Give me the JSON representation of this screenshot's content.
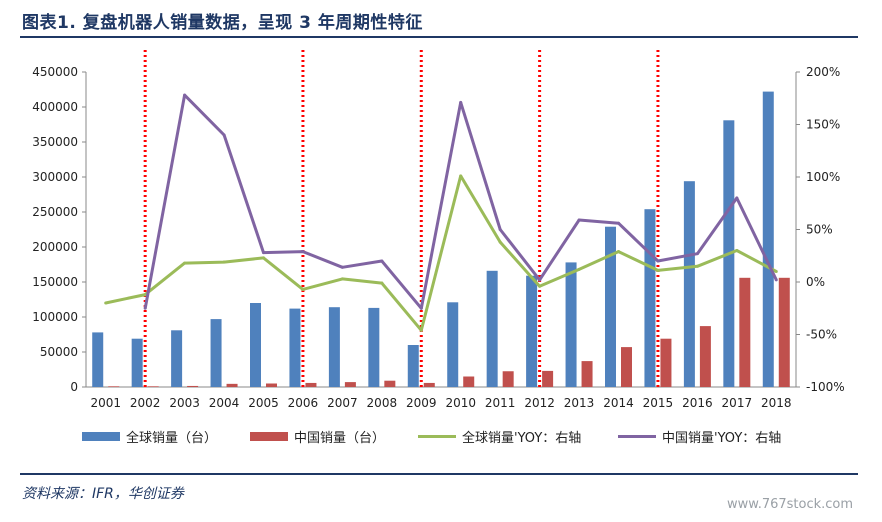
{
  "header": {
    "title": "图表1.   复盘机器人销量数据，呈现 3 年周期性特征"
  },
  "footer": {
    "source": "资料来源：IFR，华创证券",
    "watermark": "www.767stock.com"
  },
  "colors": {
    "global_bar": "#4f81bd",
    "china_bar": "#c0504d",
    "global_yoy": "#9bbb59",
    "china_yoy": "#8064a2",
    "cycle_marker": "#ff0000",
    "title": "#1f3864"
  },
  "chart_data": {
    "type": "bar",
    "categories": [
      "2001",
      "2002",
      "2003",
      "2004",
      "2005",
      "2006",
      "2007",
      "2008",
      "2009",
      "2010",
      "2011",
      "2012",
      "2013",
      "2014",
      "2015",
      "2016",
      "2017",
      "2018"
    ],
    "series": [
      {
        "name": "全球销量（台）",
        "type": "bar",
        "axis": "left",
        "values": [
          78000,
          69000,
          81000,
          97000,
          120000,
          112000,
          114000,
          113000,
          60000,
          121000,
          166000,
          159000,
          178000,
          229000,
          254000,
          294000,
          381000,
          422000
        ]
      },
      {
        "name": "中国销量（台）",
        "type": "bar",
        "axis": "left",
        "values": [
          1000,
          1000,
          1500,
          4500,
          5000,
          5800,
          7000,
          9000,
          5800,
          15000,
          22500,
          23000,
          37000,
          57000,
          69000,
          87000,
          156000,
          156000
        ]
      },
      {
        "name": "全球销量'YOY：右轴",
        "type": "line",
        "axis": "right",
        "values": [
          -20,
          -12,
          18,
          19,
          23,
          -7,
          3,
          -1,
          -46,
          101,
          38,
          -4,
          12,
          29,
          11,
          15,
          30,
          10
        ]
      },
      {
        "name": "中国销量'YOY：右轴",
        "type": "line",
        "axis": "right",
        "values": [
          null,
          -25,
          178,
          140,
          28,
          29,
          14,
          20,
          -25,
          171,
          50,
          2,
          59,
          56,
          20,
          27,
          80,
          2
        ]
      }
    ],
    "cycle_markers": [
      "2002",
      "2006",
      "2009",
      "2012",
      "2015"
    ],
    "y_left": {
      "min": 0,
      "max": 450000,
      "step": 50000,
      "ticks": [
        "0",
        "50000",
        "100000",
        "150000",
        "200000",
        "250000",
        "300000",
        "350000",
        "400000",
        "450000"
      ]
    },
    "y_right": {
      "min": -100,
      "max": 200,
      "step": 50,
      "ticks": [
        "-100%",
        "-50%",
        "0%",
        "50%",
        "100%",
        "150%",
        "200%"
      ]
    },
    "legend_position": "bottom",
    "grid": false
  }
}
